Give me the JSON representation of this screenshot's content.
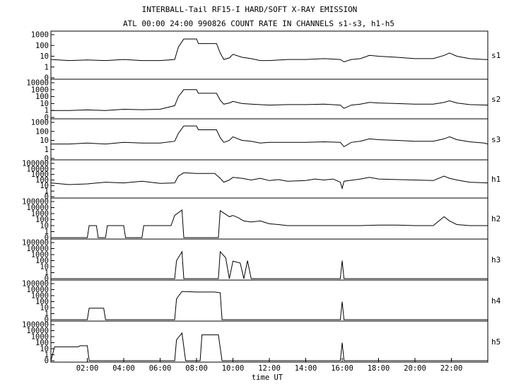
{
  "chart_data": {
    "type": "line",
    "title": "INTERBALL-Tail RF15-I HARD/SOFT X-RAY EMISSION",
    "subtitle": "ATL 00:00 24:00 990826  COUNT RATE IN CHANNELS s1-s3, h1-h5",
    "xlabel": "time UT",
    "xlim": [
      0,
      24
    ],
    "x_ticks": [
      "02:00",
      "04:00",
      "06:00",
      "08:00",
      "10:00",
      "12:00",
      "14:00",
      "16:00",
      "18:00",
      "20:00",
      "22:00"
    ],
    "x_tick_hours": [
      2,
      4,
      6,
      8,
      10,
      12,
      14,
      16,
      18,
      20,
      22
    ],
    "y_scale": "log",
    "grid": false,
    "panels": [
      {
        "channel": "s1",
        "y_ticks": [
          "1000",
          "100",
          "10",
          "1",
          "0"
        ],
        "y_max": 1000,
        "points": [
          [
            0,
            5
          ],
          [
            1,
            4
          ],
          [
            2,
            4.5
          ],
          [
            3,
            4
          ],
          [
            4,
            5
          ],
          [
            5,
            4
          ],
          [
            6,
            4
          ],
          [
            6.8,
            5
          ],
          [
            7.0,
            70
          ],
          [
            7.3,
            400
          ],
          [
            8.0,
            400
          ],
          [
            8.1,
            150
          ],
          [
            9.1,
            150
          ],
          [
            9.3,
            20
          ],
          [
            9.5,
            5
          ],
          [
            9.8,
            7
          ],
          [
            10.0,
            15
          ],
          [
            10.5,
            8
          ],
          [
            11.0,
            6
          ],
          [
            11.5,
            4
          ],
          [
            12,
            4
          ],
          [
            13,
            5
          ],
          [
            14,
            5
          ],
          [
            15,
            6
          ],
          [
            15.9,
            5
          ],
          [
            16.1,
            3
          ],
          [
            16.5,
            5
          ],
          [
            17,
            6
          ],
          [
            17.5,
            12
          ],
          [
            18,
            10
          ],
          [
            19,
            8
          ],
          [
            20,
            6
          ],
          [
            21,
            6
          ],
          [
            21.6,
            12
          ],
          [
            21.9,
            20
          ],
          [
            22.3,
            10
          ],
          [
            23,
            6
          ],
          [
            23.8,
            5
          ],
          [
            24,
            5
          ]
        ]
      },
      {
        "channel": "s2",
        "y_ticks": [
          "10000",
          "1000",
          "100",
          "10",
          "1",
          "0"
        ],
        "y_max": 10000,
        "points": [
          [
            0,
            1
          ],
          [
            1,
            1
          ],
          [
            2,
            1.2
          ],
          [
            3,
            1
          ],
          [
            4,
            1.5
          ],
          [
            5,
            1.3
          ],
          [
            6,
            1.5
          ],
          [
            6.8,
            5
          ],
          [
            7.0,
            100
          ],
          [
            7.3,
            1000
          ],
          [
            8.0,
            1000
          ],
          [
            8.1,
            300
          ],
          [
            9.1,
            300
          ],
          [
            9.3,
            30
          ],
          [
            9.5,
            8
          ],
          [
            9.8,
            12
          ],
          [
            10.0,
            20
          ],
          [
            10.5,
            10
          ],
          [
            11,
            8
          ],
          [
            12,
            6
          ],
          [
            13,
            7
          ],
          [
            14,
            7
          ],
          [
            15,
            8
          ],
          [
            15.9,
            6
          ],
          [
            16.1,
            2
          ],
          [
            16.5,
            6
          ],
          [
            17,
            8
          ],
          [
            17.5,
            15
          ],
          [
            18,
            12
          ],
          [
            19,
            10
          ],
          [
            20,
            8
          ],
          [
            21,
            8
          ],
          [
            21.6,
            15
          ],
          [
            21.9,
            25
          ],
          [
            22.3,
            12
          ],
          [
            23,
            7
          ],
          [
            24,
            6
          ]
        ]
      },
      {
        "channel": "s3",
        "y_ticks": [
          "1000",
          "100",
          "10",
          "1",
          "0"
        ],
        "y_max": 1000,
        "points": [
          [
            0,
            4
          ],
          [
            1,
            4
          ],
          [
            2,
            5
          ],
          [
            3,
            4
          ],
          [
            4,
            6
          ],
          [
            5,
            5
          ],
          [
            6,
            5
          ],
          [
            6.8,
            8
          ],
          [
            7.0,
            60
          ],
          [
            7.3,
            400
          ],
          [
            8.0,
            400
          ],
          [
            8.1,
            150
          ],
          [
            9.1,
            150
          ],
          [
            9.3,
            20
          ],
          [
            9.5,
            6
          ],
          [
            9.8,
            10
          ],
          [
            10.0,
            25
          ],
          [
            10.5,
            10
          ],
          [
            11,
            8
          ],
          [
            11.5,
            5
          ],
          [
            12,
            6
          ],
          [
            13,
            6
          ],
          [
            14,
            6
          ],
          [
            15,
            7
          ],
          [
            15.9,
            6
          ],
          [
            16.1,
            2
          ],
          [
            16.5,
            6
          ],
          [
            17,
            8
          ],
          [
            17.5,
            15
          ],
          [
            18,
            12
          ],
          [
            19,
            10
          ],
          [
            20,
            8
          ],
          [
            21,
            8
          ],
          [
            21.6,
            15
          ],
          [
            21.9,
            25
          ],
          [
            22.3,
            12
          ],
          [
            23,
            7
          ],
          [
            23.8,
            5
          ],
          [
            24,
            4
          ]
        ]
      },
      {
        "channel": "h1",
        "y_ticks": [
          "100000",
          "10000",
          "1000",
          "100",
          "10",
          "1",
          "0"
        ],
        "y_max": 100000,
        "points": [
          [
            0,
            30
          ],
          [
            1,
            15
          ],
          [
            2,
            20
          ],
          [
            3,
            40
          ],
          [
            4,
            30
          ],
          [
            5,
            60
          ],
          [
            6,
            25
          ],
          [
            6.8,
            30
          ],
          [
            7.0,
            500
          ],
          [
            7.3,
            2000
          ],
          [
            8.0,
            1500
          ],
          [
            9.0,
            1500
          ],
          [
            9.3,
            200
          ],
          [
            9.5,
            40
          ],
          [
            9.8,
            100
          ],
          [
            10.0,
            300
          ],
          [
            10.5,
            200
          ],
          [
            11,
            100
          ],
          [
            11.5,
            200
          ],
          [
            12,
            80
          ],
          [
            12.5,
            120
          ],
          [
            13,
            60
          ],
          [
            14,
            80
          ],
          [
            14.5,
            150
          ],
          [
            15,
            100
          ],
          [
            15.5,
            150
          ],
          [
            15.9,
            40
          ],
          [
            16.0,
            3
          ],
          [
            16.1,
            60
          ],
          [
            17,
            150
          ],
          [
            17.5,
            300
          ],
          [
            18,
            150
          ],
          [
            19,
            120
          ],
          [
            20,
            100
          ],
          [
            21,
            80
          ],
          [
            21.6,
            500
          ],
          [
            21.9,
            200
          ],
          [
            22.3,
            100
          ],
          [
            23,
            40
          ],
          [
            24,
            30
          ]
        ]
      },
      {
        "channel": "h2",
        "y_ticks": [
          "100000",
          "10000",
          "1000",
          "100",
          "10",
          "1",
          "0"
        ],
        "y_max": 100000,
        "points": [
          [
            0,
            0
          ],
          [
            2.0,
            0
          ],
          [
            2.1,
            10
          ],
          [
            2.5,
            10
          ],
          [
            2.6,
            0
          ],
          [
            3.0,
            0
          ],
          [
            3.1,
            10
          ],
          [
            4.0,
            10
          ],
          [
            4.1,
            0
          ],
          [
            5.0,
            0
          ],
          [
            5.1,
            10
          ],
          [
            6.2,
            10
          ],
          [
            6.6,
            10
          ],
          [
            6.8,
            500
          ],
          [
            7.2,
            4000
          ],
          [
            7.3,
            0
          ],
          [
            7.5,
            0
          ],
          [
            9.2,
            0
          ],
          [
            9.3,
            3000
          ],
          [
            9.8,
            300
          ],
          [
            10.0,
            500
          ],
          [
            10.3,
            200
          ],
          [
            10.6,
            60
          ],
          [
            11,
            40
          ],
          [
            11.5,
            60
          ],
          [
            12,
            20
          ],
          [
            12.5,
            15
          ],
          [
            13,
            10
          ],
          [
            14,
            10
          ],
          [
            15,
            10
          ],
          [
            16,
            10
          ],
          [
            17,
            10
          ],
          [
            18,
            12
          ],
          [
            19,
            12
          ],
          [
            20,
            10
          ],
          [
            21,
            10
          ],
          [
            21.6,
            300
          ],
          [
            21.9,
            60
          ],
          [
            22.3,
            15
          ],
          [
            23,
            10
          ],
          [
            24,
            10
          ]
        ]
      },
      {
        "channel": "h3",
        "y_ticks": [
          "100000",
          "10000",
          "1000",
          "100",
          "10",
          "1",
          "0"
        ],
        "y_max": 100000,
        "points": [
          [
            0,
            0
          ],
          [
            6.8,
            0
          ],
          [
            6.9,
            100
          ],
          [
            7.2,
            3000
          ],
          [
            7.3,
            0
          ],
          [
            9.2,
            0
          ],
          [
            9.3,
            3000
          ],
          [
            9.6,
            300
          ],
          [
            9.8,
            0
          ],
          [
            10.0,
            80
          ],
          [
            10.4,
            40
          ],
          [
            10.6,
            0
          ],
          [
            10.8,
            100
          ],
          [
            11.0,
            0
          ],
          [
            11.2,
            0
          ],
          [
            15.9,
            0
          ],
          [
            16.0,
            100
          ],
          [
            16.1,
            0
          ],
          [
            24,
            0
          ]
        ]
      },
      {
        "channel": "h4",
        "y_ticks": [
          "100000",
          "10000",
          "1000",
          "100",
          "10",
          "1",
          "0"
        ],
        "y_max": 100000,
        "points": [
          [
            0,
            0
          ],
          [
            0.5,
            0
          ],
          [
            2.0,
            0
          ],
          [
            2.1,
            8
          ],
          [
            2.9,
            8
          ],
          [
            3.0,
            0
          ],
          [
            6.8,
            0
          ],
          [
            6.9,
            300
          ],
          [
            7.2,
            5000
          ],
          [
            8.0,
            4000
          ],
          [
            9.0,
            4000
          ],
          [
            9.3,
            3000
          ],
          [
            9.4,
            0
          ],
          [
            11.0,
            0
          ],
          [
            15.9,
            0
          ],
          [
            16.0,
            100
          ],
          [
            16.1,
            0
          ],
          [
            24,
            0
          ]
        ]
      },
      {
        "channel": "h5",
        "y_ticks": [
          "100000",
          "10000",
          "1000",
          "100",
          "10",
          "1",
          "0"
        ],
        "y_max": 100000,
        "points": [
          [
            0,
            0
          ],
          [
            0.2,
            20
          ],
          [
            1.5,
            20
          ],
          [
            1.6,
            30
          ],
          [
            2.0,
            30
          ],
          [
            2.1,
            0
          ],
          [
            6.8,
            0
          ],
          [
            6.9,
            300
          ],
          [
            7.2,
            4000
          ],
          [
            7.4,
            0
          ],
          [
            8.2,
            0
          ],
          [
            8.3,
            2000
          ],
          [
            9.2,
            2000
          ],
          [
            9.4,
            0
          ],
          [
            11.0,
            0
          ],
          [
            15.9,
            0
          ],
          [
            16.0,
            100
          ],
          [
            16.1,
            0
          ],
          [
            24,
            0
          ]
        ]
      }
    ]
  }
}
